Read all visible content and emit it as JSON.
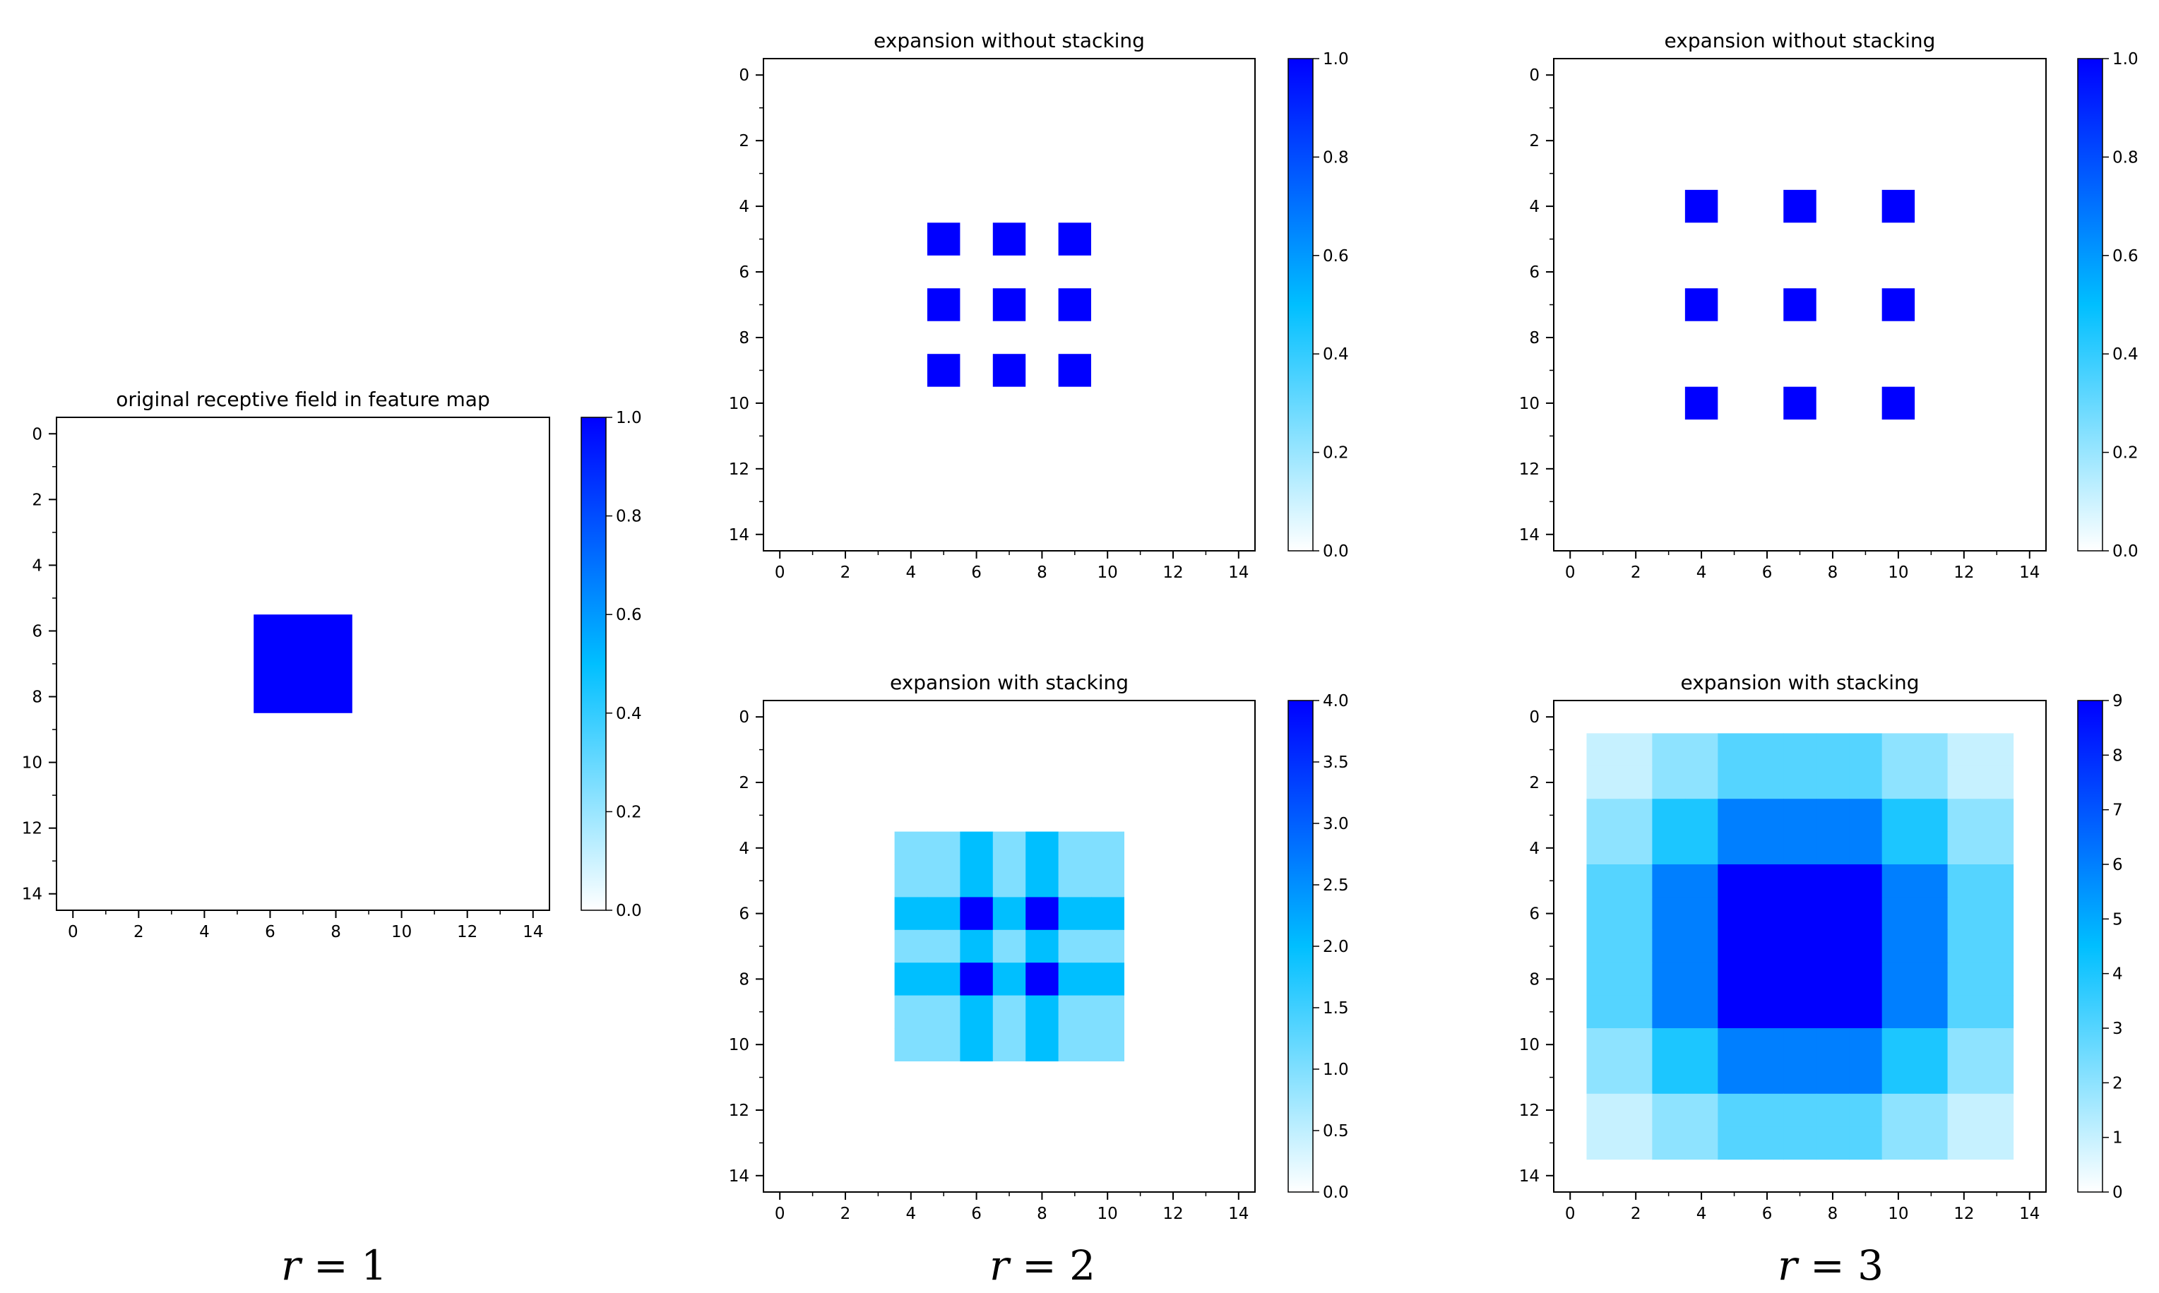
{
  "colors": {
    "cmap_low": "#ffffff",
    "cmap_mid": "#00bfff",
    "cmap_high": "#0000ff",
    "axis": "#000000"
  },
  "column_labels": [
    {
      "var": "r",
      "eq": "= 1"
    },
    {
      "var": "r",
      "eq": "= 2"
    },
    {
      "var": "r",
      "eq": "= 3"
    }
  ],
  "chart_data": [
    {
      "id": "original",
      "type": "heatmap",
      "title": "original receptive field in feature map",
      "xlim": [
        -0.5,
        14.5
      ],
      "ylim": [
        -0.5,
        14.5
      ],
      "x_ticks": [
        0,
        2,
        4,
        6,
        8,
        10,
        12,
        14
      ],
      "y_ticks": [
        0,
        2,
        4,
        6,
        8,
        10,
        12,
        14
      ],
      "cells": [
        {
          "x0": 6,
          "x1": 8,
          "y0": 6,
          "y1": 8,
          "v": 1
        }
      ],
      "colorbar": {
        "min": 0,
        "max": 1,
        "ticks": [
          "0.0",
          "0.2",
          "0.4",
          "0.6",
          "0.8",
          "1.0"
        ]
      }
    },
    {
      "id": "r2-without",
      "type": "heatmap",
      "title": "expansion without stacking",
      "xlim": [
        -0.5,
        14.5
      ],
      "ylim": [
        -0.5,
        14.5
      ],
      "x_ticks": [
        0,
        2,
        4,
        6,
        8,
        10,
        12,
        14
      ],
      "y_ticks": [
        0,
        2,
        4,
        6,
        8,
        10,
        12,
        14
      ],
      "cells": [
        {
          "x0": 5,
          "x1": 5,
          "y0": 5,
          "y1": 5,
          "v": 1
        },
        {
          "x0": 7,
          "x1": 7,
          "y0": 5,
          "y1": 5,
          "v": 1
        },
        {
          "x0": 9,
          "x1": 9,
          "y0": 5,
          "y1": 5,
          "v": 1
        },
        {
          "x0": 5,
          "x1": 5,
          "y0": 7,
          "y1": 7,
          "v": 1
        },
        {
          "x0": 7,
          "x1": 7,
          "y0": 7,
          "y1": 7,
          "v": 1
        },
        {
          "x0": 9,
          "x1": 9,
          "y0": 7,
          "y1": 7,
          "v": 1
        },
        {
          "x0": 5,
          "x1": 5,
          "y0": 9,
          "y1": 9,
          "v": 1
        },
        {
          "x0": 7,
          "x1": 7,
          "y0": 9,
          "y1": 9,
          "v": 1
        },
        {
          "x0": 9,
          "x1": 9,
          "y0": 9,
          "y1": 9,
          "v": 1
        }
      ],
      "colorbar": {
        "min": 0,
        "max": 1,
        "ticks": [
          "0.0",
          "0.2",
          "0.4",
          "0.6",
          "0.8",
          "1.0"
        ]
      }
    },
    {
      "id": "r3-without",
      "type": "heatmap",
      "title": "expansion without stacking",
      "xlim": [
        -0.5,
        14.5
      ],
      "ylim": [
        -0.5,
        14.5
      ],
      "x_ticks": [
        0,
        2,
        4,
        6,
        8,
        10,
        12,
        14
      ],
      "y_ticks": [
        0,
        2,
        4,
        6,
        8,
        10,
        12,
        14
      ],
      "cells": [
        {
          "x0": 4,
          "x1": 4,
          "y0": 4,
          "y1": 4,
          "v": 1
        },
        {
          "x0": 7,
          "x1": 7,
          "y0": 4,
          "y1": 4,
          "v": 1
        },
        {
          "x0": 10,
          "x1": 10,
          "y0": 4,
          "y1": 4,
          "v": 1
        },
        {
          "x0": 4,
          "x1": 4,
          "y0": 7,
          "y1": 7,
          "v": 1
        },
        {
          "x0": 7,
          "x1": 7,
          "y0": 7,
          "y1": 7,
          "v": 1
        },
        {
          "x0": 10,
          "x1": 10,
          "y0": 7,
          "y1": 7,
          "v": 1
        },
        {
          "x0": 4,
          "x1": 4,
          "y0": 10,
          "y1": 10,
          "v": 1
        },
        {
          "x0": 7,
          "x1": 7,
          "y0": 10,
          "y1": 10,
          "v": 1
        },
        {
          "x0": 10,
          "x1": 10,
          "y0": 10,
          "y1": 10,
          "v": 1
        }
      ],
      "colorbar": {
        "min": 0,
        "max": 1,
        "ticks": [
          "0.0",
          "0.2",
          "0.4",
          "0.6",
          "0.8",
          "1.0"
        ]
      }
    },
    {
      "id": "r2-with",
      "type": "heatmap",
      "title": "expansion with stacking",
      "xlim": [
        -0.5,
        14.5
      ],
      "ylim": [
        -0.5,
        14.5
      ],
      "x_ticks": [
        0,
        2,
        4,
        6,
        8,
        10,
        12,
        14
      ],
      "y_ticks": [
        0,
        2,
        4,
        6,
        8,
        10,
        12,
        14
      ],
      "grid_x": [
        4,
        5,
        6,
        7,
        8,
        9,
        10
      ],
      "grid_y": [
        4,
        5,
        6,
        7,
        8,
        9,
        10
      ],
      "grid_values": [
        [
          1,
          1,
          2,
          1,
          2,
          1,
          1
        ],
        [
          1,
          1,
          2,
          1,
          2,
          1,
          1
        ],
        [
          2,
          2,
          4,
          2,
          4,
          2,
          2
        ],
        [
          1,
          1,
          2,
          1,
          2,
          1,
          1
        ],
        [
          2,
          2,
          4,
          2,
          4,
          2,
          2
        ],
        [
          1,
          1,
          2,
          1,
          2,
          1,
          1
        ],
        [
          1,
          1,
          2,
          1,
          2,
          1,
          1
        ]
      ],
      "colorbar": {
        "min": 0,
        "max": 4,
        "ticks": [
          "0.0",
          "0.5",
          "1.0",
          "1.5",
          "2.0",
          "2.5",
          "3.0",
          "3.5",
          "4.0"
        ]
      }
    },
    {
      "id": "r3-with",
      "type": "heatmap",
      "title": "expansion with stacking",
      "xlim": [
        -0.5,
        14.5
      ],
      "ylim": [
        -0.5,
        14.5
      ],
      "x_ticks": [
        0,
        2,
        4,
        6,
        8,
        10,
        12,
        14
      ],
      "y_ticks": [
        0,
        2,
        4,
        6,
        8,
        10,
        12,
        14
      ],
      "grid_x": [
        1,
        2,
        3,
        4,
        5,
        6,
        7,
        8,
        9,
        10,
        11,
        12,
        13
      ],
      "grid_y": [
        1,
        2,
        3,
        4,
        5,
        6,
        7,
        8,
        9,
        10,
        11,
        12,
        13
      ],
      "grid_values": [
        [
          1,
          1,
          2,
          2,
          3,
          3,
          3,
          3,
          3,
          2,
          2,
          1,
          1
        ],
        [
          1,
          1,
          2,
          2,
          3,
          3,
          3,
          3,
          3,
          2,
          2,
          1,
          1
        ],
        [
          2,
          2,
          4,
          4,
          6,
          6,
          6,
          6,
          6,
          4,
          4,
          2,
          2
        ],
        [
          2,
          2,
          4,
          4,
          6,
          6,
          6,
          6,
          6,
          4,
          4,
          2,
          2
        ],
        [
          3,
          3,
          6,
          6,
          9,
          9,
          9,
          9,
          9,
          6,
          6,
          3,
          3
        ],
        [
          3,
          3,
          6,
          6,
          9,
          9,
          9,
          9,
          9,
          6,
          6,
          3,
          3
        ],
        [
          3,
          3,
          6,
          6,
          9,
          9,
          9,
          9,
          9,
          6,
          6,
          3,
          3
        ],
        [
          3,
          3,
          6,
          6,
          9,
          9,
          9,
          9,
          9,
          6,
          6,
          3,
          3
        ],
        [
          3,
          3,
          6,
          6,
          9,
          9,
          9,
          9,
          9,
          6,
          6,
          3,
          3
        ],
        [
          2,
          2,
          4,
          4,
          6,
          6,
          6,
          6,
          6,
          4,
          4,
          2,
          2
        ],
        [
          2,
          2,
          4,
          4,
          6,
          6,
          6,
          6,
          6,
          4,
          4,
          2,
          2
        ],
        [
          1,
          1,
          2,
          2,
          3,
          3,
          3,
          3,
          3,
          2,
          2,
          1,
          1
        ],
        [
          1,
          1,
          2,
          2,
          3,
          3,
          3,
          3,
          3,
          2,
          2,
          1,
          1
        ]
      ],
      "colorbar": {
        "min": 0,
        "max": 9,
        "ticks": [
          "0",
          "1",
          "2",
          "3",
          "4",
          "5",
          "6",
          "7",
          "8",
          "9"
        ]
      }
    }
  ]
}
